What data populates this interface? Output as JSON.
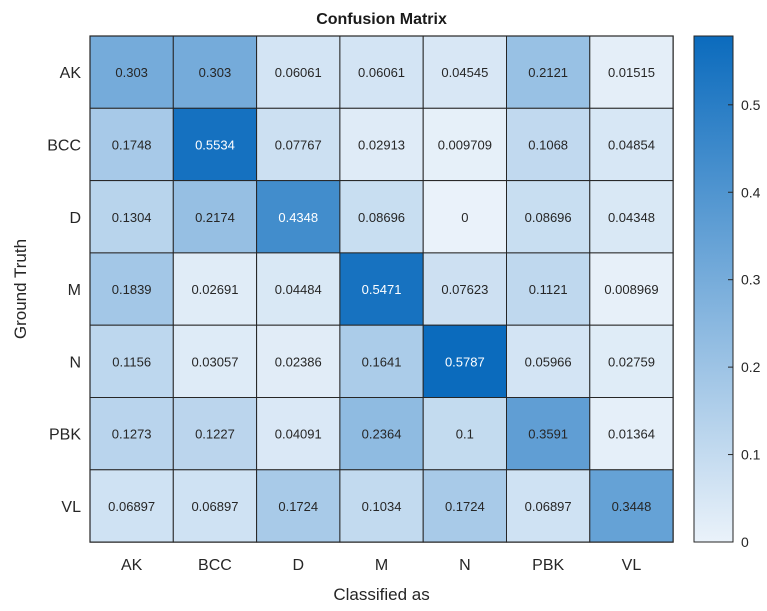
{
  "chart_data": {
    "type": "heatmap",
    "title": "Confusion Matrix",
    "xlabel": "Classified as",
    "ylabel": "Ground Truth",
    "x_categories": [
      "AK",
      "BCC",
      "D",
      "M",
      "N",
      "PBK",
      "VL"
    ],
    "y_categories": [
      "AK",
      "BCC",
      "D",
      "M",
      "N",
      "PBK",
      "VL"
    ],
    "cells": [
      [
        "0.303",
        "0.303",
        "0.06061",
        "0.06061",
        "0.04545",
        "0.2121",
        "0.01515"
      ],
      [
        "0.1748",
        "0.5534",
        "0.07767",
        "0.02913",
        "0.009709",
        "0.1068",
        "0.04854"
      ],
      [
        "0.1304",
        "0.2174",
        "0.4348",
        "0.08696",
        "0",
        "0.08696",
        "0.04348"
      ],
      [
        "0.1839",
        "0.02691",
        "0.04484",
        "0.5471",
        "0.07623",
        "0.1121",
        "0.008969"
      ],
      [
        "0.1156",
        "0.03057",
        "0.02386",
        "0.1641",
        "0.5787",
        "0.05966",
        "0.02759"
      ],
      [
        "0.1273",
        "0.1227",
        "0.04091",
        "0.2364",
        "0.1",
        "0.3591",
        "0.01364"
      ],
      [
        "0.06897",
        "0.06897",
        "0.1724",
        "0.1034",
        "0.1724",
        "0.06897",
        "0.3448"
      ]
    ],
    "colorbar": {
      "min": 0,
      "max": 0.5787,
      "ticks": [
        "0",
        "0.1",
        "0.2",
        "0.3",
        "0.4",
        "0.5"
      ],
      "low_color": "#eaf2fa",
      "high_color": "#0b6bbd"
    },
    "grid": true,
    "legend": "colorbar-right"
  }
}
